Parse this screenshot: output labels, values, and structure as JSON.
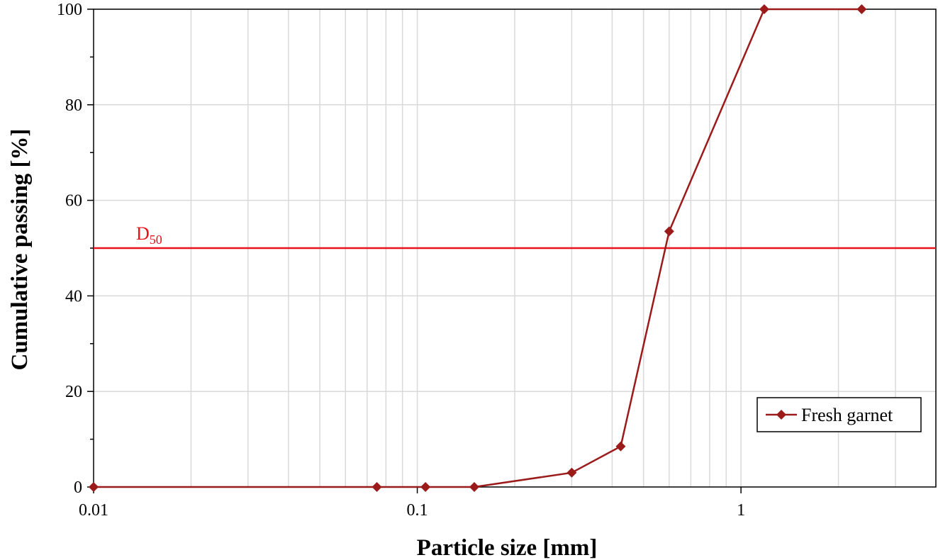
{
  "chart_data": {
    "type": "line",
    "title": "",
    "xlabel": "Particle size [mm]",
    "ylabel": "Cumulative passing [%]",
    "x_scale": "log",
    "xlim": [
      0.01,
      4
    ],
    "ylim": [
      0,
      100
    ],
    "x_tick_labels": [
      "0.01",
      "0.1",
      "1"
    ],
    "x_ticks": [
      0.01,
      0.1,
      1
    ],
    "y_ticks": [
      0,
      20,
      40,
      60,
      80,
      100
    ],
    "y_tick_labels": [
      "0",
      "20",
      "40",
      "60",
      "80",
      "100"
    ],
    "grid": true,
    "legend_position": "bottom-right",
    "series": [
      {
        "name": "Fresh garnet",
        "color": "#9b1b1b",
        "marker": "diamond",
        "x": [
          0.01,
          0.075,
          0.106,
          0.15,
          0.3,
          0.425,
          0.6,
          1.18,
          2.36
        ],
        "y": [
          0,
          0,
          0,
          0,
          3,
          8.5,
          53.5,
          100,
          100
        ]
      }
    ],
    "reference_line": {
      "label_main": "D",
      "label_sub": "50",
      "y": 50,
      "color": "#e8141c"
    }
  }
}
